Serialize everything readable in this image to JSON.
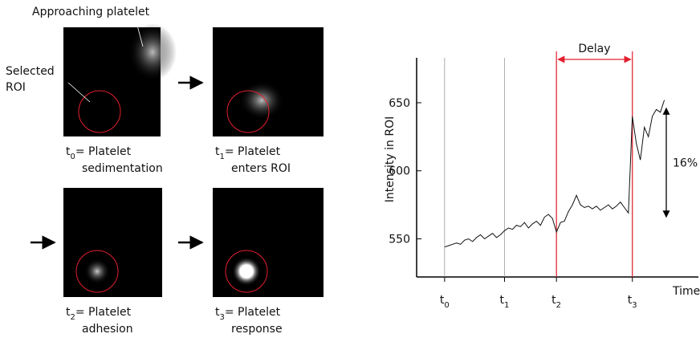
{
  "panels": {
    "top_label": "Approaching platelet",
    "roi_label": [
      "Selected",
      "ROI"
    ],
    "captions": [
      {
        "t": "t",
        "sub": "0",
        "line1": "= Platelet",
        "line2": "sedimentation"
      },
      {
        "t": "t",
        "sub": "1",
        "line1": "= Platelet",
        "line2": "enters ROI"
      },
      {
        "t": "t",
        "sub": "2",
        "line1": "= Platelet",
        "line2": "adhesion"
      },
      {
        "t": "t",
        "sub": "3",
        "line1": "= Platelet",
        "line2": "response"
      }
    ]
  },
  "chart_data": {
    "type": "line",
    "ylabel": "Intensity in ROI",
    "xlabel": "Time",
    "color": "#111111",
    "values": [
      544,
      545,
      546,
      547,
      546,
      549,
      550,
      548,
      551,
      553,
      550,
      552,
      554,
      551,
      553,
      556,
      558,
      557,
      560,
      559,
      562,
      558,
      561,
      563,
      560,
      566,
      568,
      565,
      555,
      562,
      563,
      570,
      575,
      582,
      575,
      573,
      574,
      572,
      574,
      571,
      573,
      575,
      572,
      574,
      577,
      573,
      569,
      640,
      620,
      608,
      632,
      625,
      640,
      645,
      643,
      652
    ],
    "xlim": [
      -7,
      57.5
    ],
    "ylim": [
      522,
      683
    ],
    "yticks": [
      550,
      600,
      650
    ],
    "xticks": [
      {
        "value": 0,
        "label": "t",
        "subscript": "0"
      },
      {
        "value": 15,
        "label": "t",
        "subscript": "1"
      },
      {
        "value": 28,
        "label": "t",
        "subscript": "2"
      },
      {
        "value": 47,
        "label": "t",
        "subscript": "3"
      }
    ],
    "delay": {
      "text": "Delay",
      "from": 28,
      "to": 47,
      "color": "#e3202e"
    },
    "change": {
      "text": "16%",
      "from": 566,
      "to": 646
    }
  }
}
